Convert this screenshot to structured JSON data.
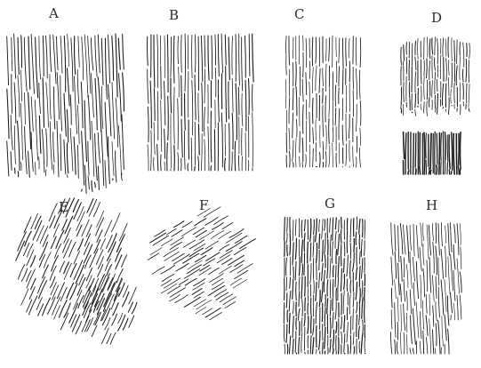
{
  "figure": {
    "panels": [
      {
        "label": "A"
      },
      {
        "label": "B"
      },
      {
        "label": "C"
      },
      {
        "label": "D"
      },
      {
        "label": "E"
      },
      {
        "label": "F"
      },
      {
        "label": "G"
      },
      {
        "label": "H"
      }
    ],
    "colors": {
      "background": "#ffffff",
      "ink": "#1c1c1c"
    }
  }
}
